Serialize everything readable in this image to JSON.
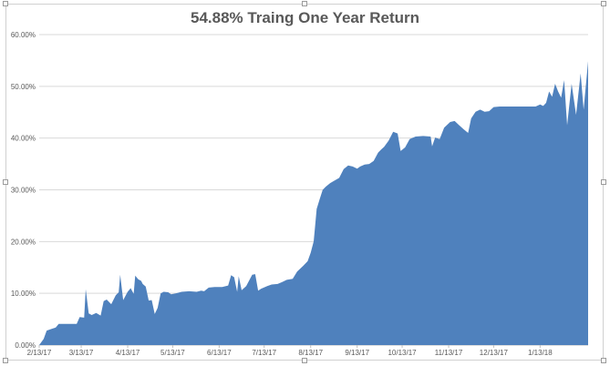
{
  "chart_data": {
    "type": "area",
    "title": "54.88% Traing One Year Return",
    "xlabel": "",
    "ylabel": "",
    "ylim": [
      0,
      0.6
    ],
    "yticks": [
      0,
      0.1,
      0.2,
      0.3,
      0.4,
      0.5,
      0.6
    ],
    "ytick_labels": [
      "0.00%",
      "10.00%",
      "20.00%",
      "30.00%",
      "40.00%",
      "50.00%",
      "60.00%"
    ],
    "xticks": [
      "2017-02-13",
      "2017-03-13",
      "2017-04-13",
      "2017-05-13",
      "2017-06-13",
      "2017-07-13",
      "2017-08-13",
      "2017-09-13",
      "2017-10-13",
      "2017-11-13",
      "2017-12-13",
      "2018-01-13"
    ],
    "xtick_labels": [
      "2/13/17",
      "3/13/17",
      "4/13/17",
      "5/13/17",
      "6/13/17",
      "7/13/17",
      "8/13/17",
      "9/13/17",
      "10/13/17",
      "11/13/17",
      "12/13/17",
      "1/13/18"
    ],
    "xlim": [
      "2017-02-13",
      "2018-02-14"
    ],
    "grid": true,
    "legend": "none",
    "color": "#4f81bd",
    "series": [
      {
        "points": [
          [
            "2017-02-13",
            0.0
          ],
          [
            "2017-02-16",
            0.012
          ],
          [
            "2017-02-18",
            0.028
          ],
          [
            "2017-02-21",
            0.031
          ],
          [
            "2017-02-24",
            0.034
          ],
          [
            "2017-02-26",
            0.041
          ],
          [
            "2017-03-01",
            0.041
          ],
          [
            "2017-03-05",
            0.041
          ],
          [
            "2017-03-08",
            0.041
          ],
          [
            "2017-03-10",
            0.041
          ],
          [
            "2017-03-12",
            0.054
          ],
          [
            "2017-03-15",
            0.053
          ],
          [
            "2017-03-16",
            0.108
          ],
          [
            "2017-03-18",
            0.061
          ],
          [
            "2017-03-20",
            0.058
          ],
          [
            "2017-03-23",
            0.062
          ],
          [
            "2017-03-26",
            0.057
          ],
          [
            "2017-03-28",
            0.085
          ],
          [
            "2017-03-30",
            0.088
          ],
          [
            "2017-04-02",
            0.079
          ],
          [
            "2017-04-05",
            0.096
          ],
          [
            "2017-04-07",
            0.102
          ],
          [
            "2017-04-08",
            0.136
          ],
          [
            "2017-04-10",
            0.087
          ],
          [
            "2017-04-13",
            0.103
          ],
          [
            "2017-04-15",
            0.11
          ],
          [
            "2017-04-17",
            0.099
          ],
          [
            "2017-04-18",
            0.134
          ],
          [
            "2017-04-20",
            0.127
          ],
          [
            "2017-04-22",
            0.124
          ],
          [
            "2017-04-23",
            0.118
          ],
          [
            "2017-04-25",
            0.113
          ],
          [
            "2017-04-27",
            0.086
          ],
          [
            "2017-04-29",
            0.087
          ],
          [
            "2017-05-01",
            0.06
          ],
          [
            "2017-05-03",
            0.072
          ],
          [
            "2017-05-05",
            0.1
          ],
          [
            "2017-05-07",
            0.103
          ],
          [
            "2017-05-10",
            0.102
          ],
          [
            "2017-05-12",
            0.098
          ],
          [
            "2017-05-15",
            0.1
          ],
          [
            "2017-05-19",
            0.103
          ],
          [
            "2017-05-24",
            0.104
          ],
          [
            "2017-05-29",
            0.103
          ],
          [
            "2017-06-01",
            0.105
          ],
          [
            "2017-06-03",
            0.104
          ],
          [
            "2017-06-06",
            0.111
          ],
          [
            "2017-06-10",
            0.112
          ],
          [
            "2017-06-15",
            0.112
          ],
          [
            "2017-06-19",
            0.115
          ],
          [
            "2017-06-21",
            0.135
          ],
          [
            "2017-06-23",
            0.131
          ],
          [
            "2017-06-25",
            0.103
          ],
          [
            "2017-06-26",
            0.133
          ],
          [
            "2017-06-28",
            0.106
          ],
          [
            "2017-07-01",
            0.114
          ],
          [
            "2017-07-05",
            0.136
          ],
          [
            "2017-07-07",
            0.137
          ],
          [
            "2017-07-09",
            0.105
          ],
          [
            "2017-07-11",
            0.109
          ],
          [
            "2017-07-15",
            0.114
          ],
          [
            "2017-07-18",
            0.117
          ],
          [
            "2017-07-22",
            0.118
          ],
          [
            "2017-07-25",
            0.122
          ],
          [
            "2017-07-28",
            0.126
          ],
          [
            "2017-08-01",
            0.128
          ],
          [
            "2017-08-04",
            0.142
          ],
          [
            "2017-08-08",
            0.153
          ],
          [
            "2017-08-11",
            0.162
          ],
          [
            "2017-08-13",
            0.178
          ],
          [
            "2017-08-15",
            0.2
          ],
          [
            "2017-08-16",
            0.23
          ],
          [
            "2017-08-17",
            0.263
          ],
          [
            "2017-08-19",
            0.282
          ],
          [
            "2017-08-21",
            0.3
          ],
          [
            "2017-08-23",
            0.306
          ],
          [
            "2017-08-26",
            0.313
          ],
          [
            "2017-08-29",
            0.318
          ],
          [
            "2017-09-01",
            0.323
          ],
          [
            "2017-09-04",
            0.34
          ],
          [
            "2017-09-07",
            0.347
          ],
          [
            "2017-09-10",
            0.345
          ],
          [
            "2017-09-13",
            0.341
          ],
          [
            "2017-09-15",
            0.345
          ],
          [
            "2017-09-18",
            0.349
          ],
          [
            "2017-09-21",
            0.35
          ],
          [
            "2017-09-24",
            0.356
          ],
          [
            "2017-09-27",
            0.372
          ],
          [
            "2017-09-29",
            0.378
          ],
          [
            "2017-10-01",
            0.383
          ],
          [
            "2017-10-04",
            0.395
          ],
          [
            "2017-10-07",
            0.412
          ],
          [
            "2017-10-10",
            0.409
          ],
          [
            "2017-10-12",
            0.375
          ],
          [
            "2017-10-15",
            0.382
          ],
          [
            "2017-10-18",
            0.398
          ],
          [
            "2017-10-22",
            0.403
          ],
          [
            "2017-10-27",
            0.404
          ],
          [
            "2017-11-01",
            0.403
          ],
          [
            "2017-11-02",
            0.384
          ],
          [
            "2017-11-04",
            0.401
          ],
          [
            "2017-11-07",
            0.398
          ],
          [
            "2017-11-10",
            0.42
          ],
          [
            "2017-11-14",
            0.431
          ],
          [
            "2017-11-17",
            0.433
          ],
          [
            "2017-11-20",
            0.425
          ],
          [
            "2017-11-23",
            0.417
          ],
          [
            "2017-11-26",
            0.41
          ],
          [
            "2017-11-28",
            0.438
          ],
          [
            "2017-12-01",
            0.451
          ],
          [
            "2017-12-04",
            0.455
          ],
          [
            "2017-12-07",
            0.451
          ],
          [
            "2017-12-10",
            0.452
          ],
          [
            "2017-12-13",
            0.46
          ],
          [
            "2017-12-17",
            0.461
          ],
          [
            "2017-12-22",
            0.461
          ],
          [
            "2017-12-27",
            0.461
          ],
          [
            "2018-01-01",
            0.461
          ],
          [
            "2018-01-06",
            0.461
          ],
          [
            "2018-01-10",
            0.461
          ],
          [
            "2018-01-13",
            0.465
          ],
          [
            "2018-01-15",
            0.462
          ],
          [
            "2018-01-17",
            0.468
          ],
          [
            "2018-01-19",
            0.49
          ],
          [
            "2018-01-21",
            0.48
          ],
          [
            "2018-01-23",
            0.505
          ],
          [
            "2018-01-25",
            0.49
          ],
          [
            "2018-01-27",
            0.478
          ],
          [
            "2018-01-29",
            0.512
          ],
          [
            "2018-01-31",
            0.425
          ],
          [
            "2018-02-03",
            0.505
          ],
          [
            "2018-02-06",
            0.445
          ],
          [
            "2018-02-09",
            0.525
          ],
          [
            "2018-02-11",
            0.455
          ],
          [
            "2018-02-14",
            0.5488
          ]
        ]
      }
    ]
  }
}
